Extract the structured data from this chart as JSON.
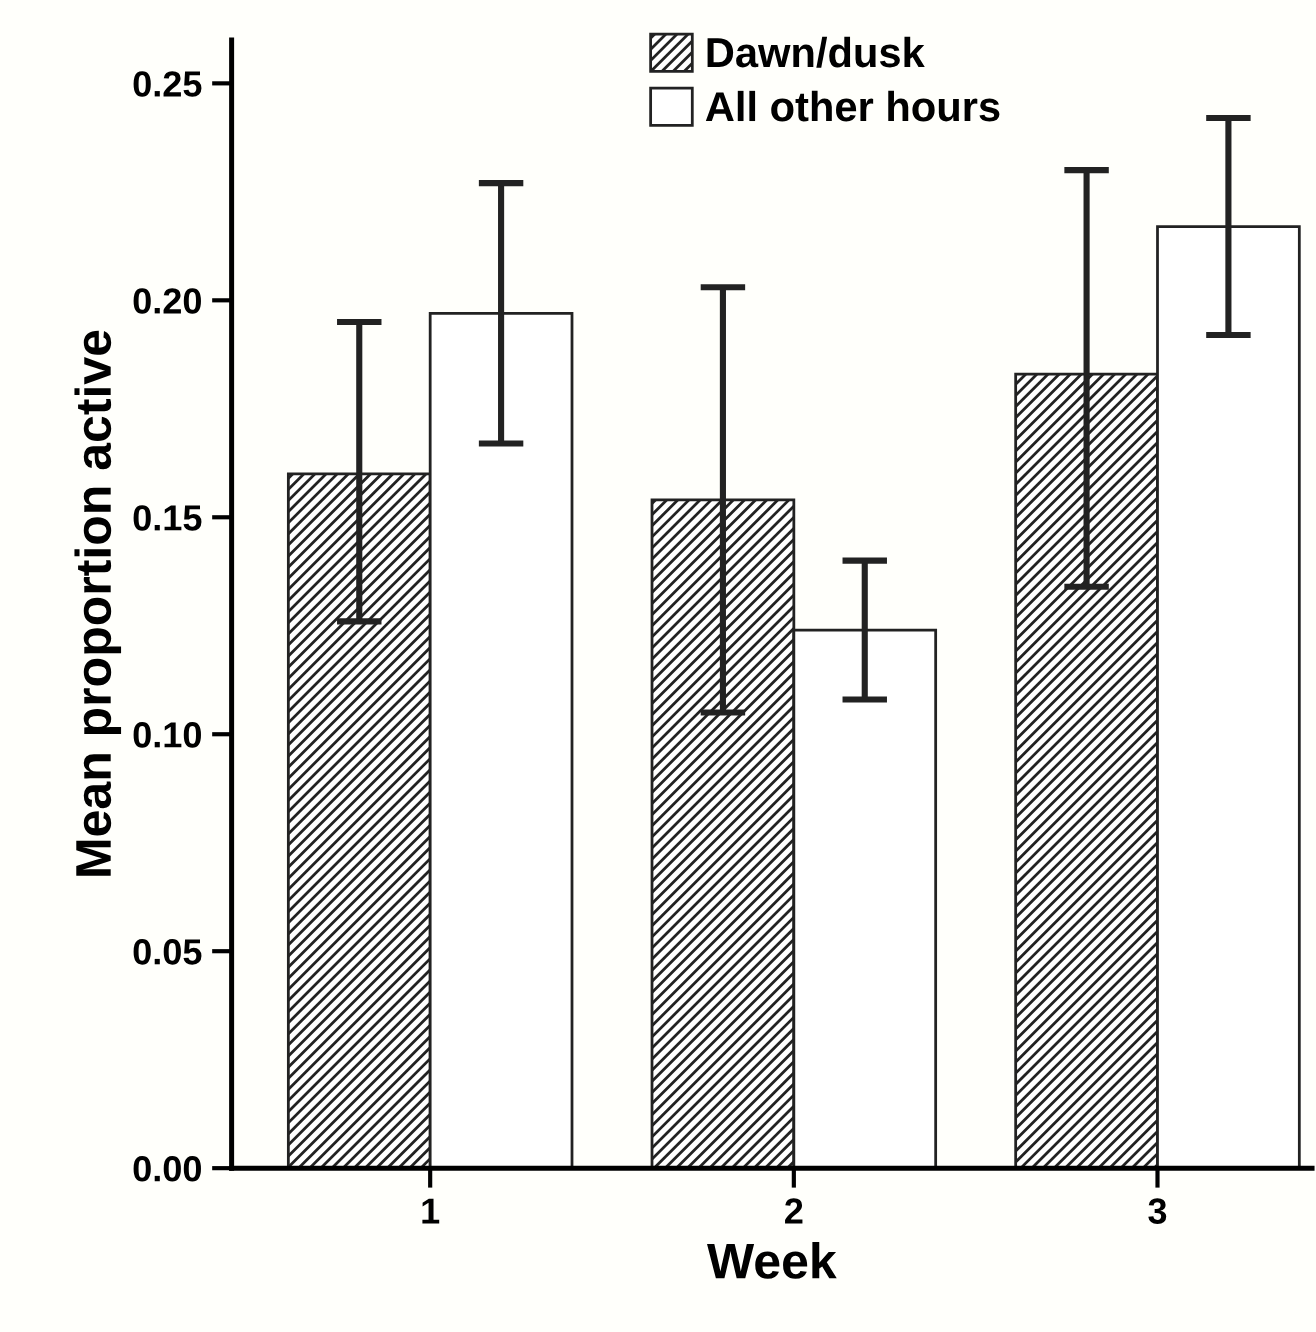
{
  "chart_data": {
    "type": "bar",
    "xlabel": "Week",
    "ylabel": "Mean proportion active",
    "categories": [
      "1",
      "2",
      "3"
    ],
    "ylim": [
      0,
      0.26
    ],
    "yticks": [
      {
        "value": 0,
        "label": "0.00"
      },
      {
        "value": 0.05,
        "label": "0.05"
      },
      {
        "value": 0.1,
        "label": "0.10"
      },
      {
        "value": 0.15,
        "label": "0.15"
      },
      {
        "value": 0.2,
        "label": "0.20"
      },
      {
        "value": 0.25,
        "label": "0.25"
      }
    ],
    "grid": false,
    "legend": "top",
    "series": [
      {
        "name": "Dawn/dusk",
        "color": "#222222",
        "values": [
          0.16,
          0.154,
          0.183
        ],
        "errors": [
          [
            0.126,
            0.195
          ],
          [
            0.105,
            0.203
          ],
          [
            0.134,
            0.23
          ]
        ]
      },
      {
        "name": "All other hours",
        "color": "#ffffff",
        "values": [
          0.197,
          0.124,
          0.217
        ],
        "errors": [
          [
            0.167,
            0.227
          ],
          [
            0.108,
            0.14
          ],
          [
            0.192,
            0.242
          ]
        ]
      }
    ]
  }
}
